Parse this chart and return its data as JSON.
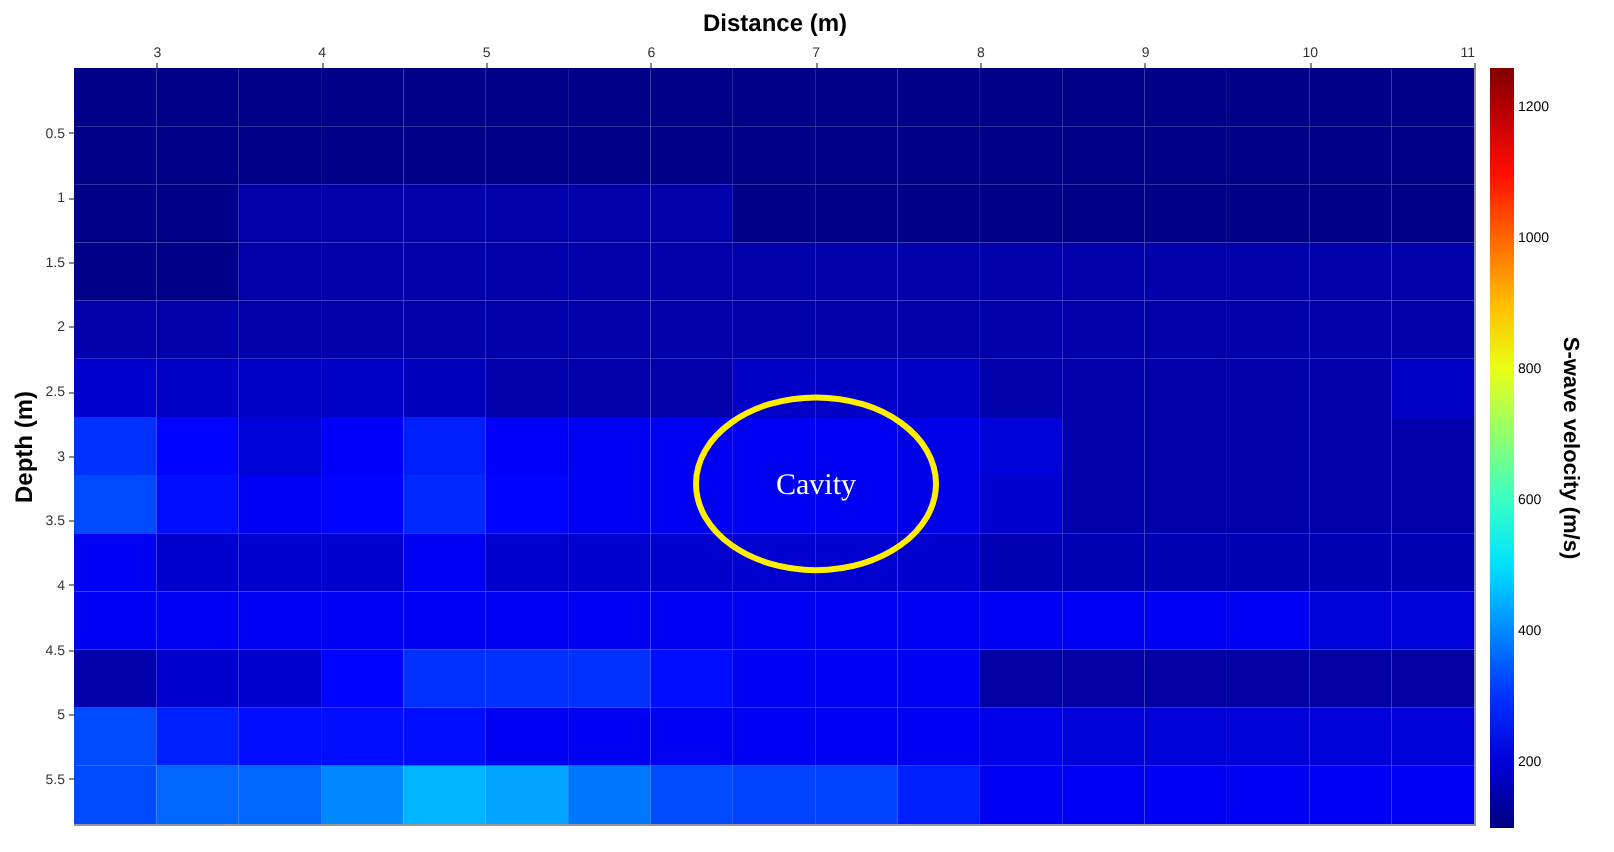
{
  "chart_data": {
    "type": "heatmap",
    "xlabel": "Distance (m)",
    "ylabel": "Depth (m)",
    "clabel": "S-wave velocity (m/s)",
    "x": [
      2.75,
      3.25,
      3.75,
      4.25,
      4.75,
      5.25,
      5.75,
      6.25,
      6.75,
      7.25,
      7.75,
      8.25,
      8.75,
      9.25,
      9.75,
      10.25,
      10.75
    ],
    "y": [
      0.225,
      0.675,
      1.125,
      1.575,
      2.025,
      2.475,
      2.925,
      3.375,
      3.825,
      4.275,
      4.725,
      5.175,
      5.625
    ],
    "xlim": [
      2.5,
      11
    ],
    "xticks": [
      3,
      4,
      5,
      6,
      7,
      8,
      9,
      10,
      11
    ],
    "ylim": [
      5.85,
      0
    ],
    "yticks": [
      0.5,
      1,
      1.5,
      2,
      2.5,
      3,
      3.5,
      4,
      4.5,
      5,
      5.5
    ],
    "clim": [
      100,
      1260
    ],
    "cticks": [
      200,
      400,
      600,
      800,
      1000,
      1200
    ],
    "cells": [
      [
        110,
        110,
        110,
        110,
        110,
        110,
        110,
        110,
        110,
        110,
        110,
        110,
        110,
        110,
        110,
        110,
        110
      ],
      [
        110,
        110,
        110,
        110,
        110,
        110,
        110,
        110,
        110,
        110,
        110,
        110,
        110,
        110,
        110,
        110,
        110
      ],
      [
        110,
        110,
        150,
        150,
        150,
        150,
        150,
        150,
        110,
        110,
        110,
        110,
        110,
        110,
        110,
        110,
        110
      ],
      [
        110,
        110,
        150,
        150,
        150,
        150,
        150,
        150,
        150,
        150,
        150,
        150,
        150,
        150,
        150,
        150,
        150
      ],
      [
        150,
        150,
        150,
        150,
        150,
        150,
        150,
        150,
        150,
        150,
        150,
        150,
        150,
        150,
        150,
        150,
        150
      ],
      [
        190,
        180,
        180,
        180,
        170,
        150,
        150,
        150,
        180,
        180,
        180,
        150,
        150,
        150,
        150,
        150,
        180
      ],
      [
        300,
        250,
        200,
        240,
        280,
        240,
        230,
        230,
        230,
        230,
        220,
        200,
        150,
        150,
        150,
        150,
        150
      ],
      [
        330,
        260,
        230,
        250,
        290,
        250,
        230,
        230,
        230,
        230,
        220,
        190,
        150,
        150,
        150,
        150,
        150
      ],
      [
        230,
        190,
        190,
        190,
        230,
        190,
        190,
        190,
        190,
        190,
        190,
        160,
        160,
        160,
        160,
        160,
        160
      ],
      [
        230,
        230,
        230,
        230,
        230,
        230,
        230,
        230,
        230,
        230,
        230,
        230,
        230,
        230,
        230,
        200,
        200
      ],
      [
        150,
        190,
        190,
        250,
        300,
        300,
        300,
        260,
        230,
        230,
        230,
        140,
        140,
        140,
        140,
        140,
        140
      ],
      [
        330,
        280,
        260,
        260,
        260,
        230,
        230,
        230,
        230,
        230,
        230,
        220,
        200,
        200,
        200,
        200,
        200
      ],
      [
        330,
        360,
        360,
        400,
        450,
        430,
        380,
        330,
        320,
        320,
        280,
        230,
        230,
        230,
        230,
        230,
        230
      ]
    ],
    "annotations": [
      "Cavity"
    ]
  }
}
